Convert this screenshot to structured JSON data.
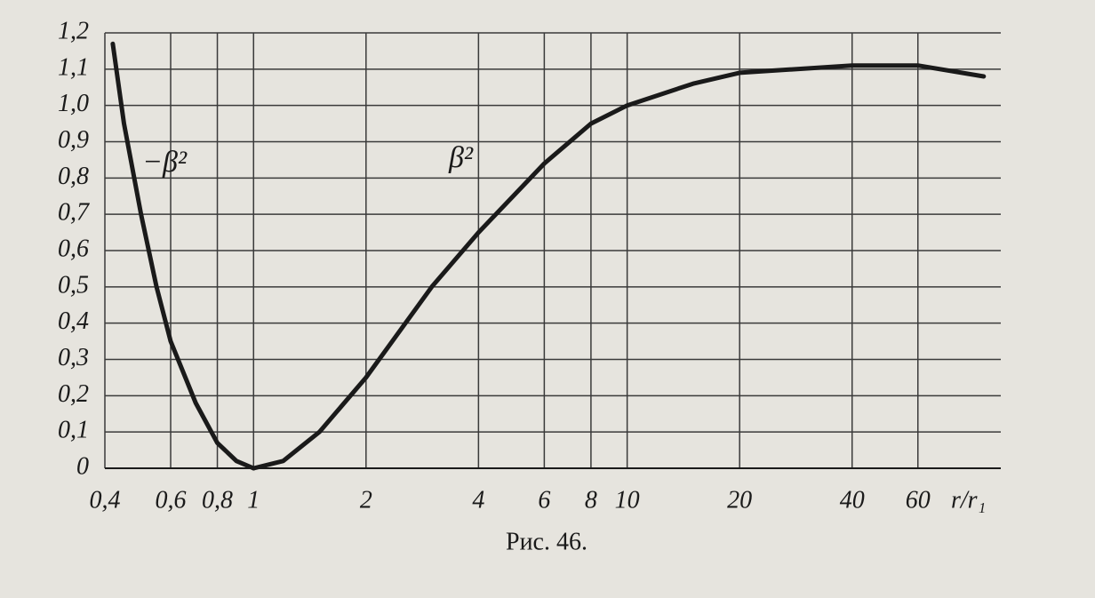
{
  "chart_data": {
    "type": "line",
    "x_label": "r/r₁",
    "caption": "Рис. 46.",
    "log_x": true,
    "grid": true,
    "xlim": [
      0.4,
      100
    ],
    "ylim": [
      0,
      1.2
    ],
    "xticks": [
      {
        "value": 0.4,
        "label": "0,4"
      },
      {
        "value": 0.6,
        "label": "0,6"
      },
      {
        "value": 0.8,
        "label": "0,8"
      },
      1,
      2,
      4,
      6,
      8,
      10,
      20,
      40,
      60
    ],
    "yticks": [
      0,
      {
        "value": 0.1,
        "label": "0,1"
      },
      {
        "value": 0.2,
        "label": "0,2"
      },
      {
        "value": 0.3,
        "label": "0,3"
      },
      {
        "value": 0.4,
        "label": "0,4"
      },
      {
        "value": 0.5,
        "label": "0,5"
      },
      {
        "value": 0.6,
        "label": "0,6"
      },
      {
        "value": 0.7,
        "label": "0,7"
      },
      {
        "value": 0.8,
        "label": "0,8"
      },
      {
        "value": 0.9,
        "label": "0,9"
      },
      {
        "value": 1.0,
        "label": "1,0"
      },
      {
        "value": 1.1,
        "label": "1,1"
      },
      {
        "value": 1.2,
        "label": "1,2"
      }
    ],
    "series": [
      {
        "name": "−β²",
        "color": "#1a1a1a",
        "x": [
          0.42,
          0.45,
          0.5,
          0.55,
          0.6,
          0.7,
          0.8,
          0.9,
          1
        ],
        "values": [
          1.17,
          0.95,
          0.7,
          0.5,
          0.35,
          0.18,
          0.07,
          0.02,
          0
        ]
      },
      {
        "name": "β²",
        "color": "#1a1a1a",
        "x": [
          1,
          1.2,
          1.5,
          2,
          3,
          4,
          6,
          8,
          10,
          15,
          20,
          40,
          60,
          90
        ],
        "values": [
          0,
          0.02,
          0.1,
          0.25,
          0.5,
          0.65,
          0.84,
          0.95,
          1.0,
          1.06,
          1.09,
          1.11,
          1.11,
          1.08
        ]
      }
    ]
  }
}
